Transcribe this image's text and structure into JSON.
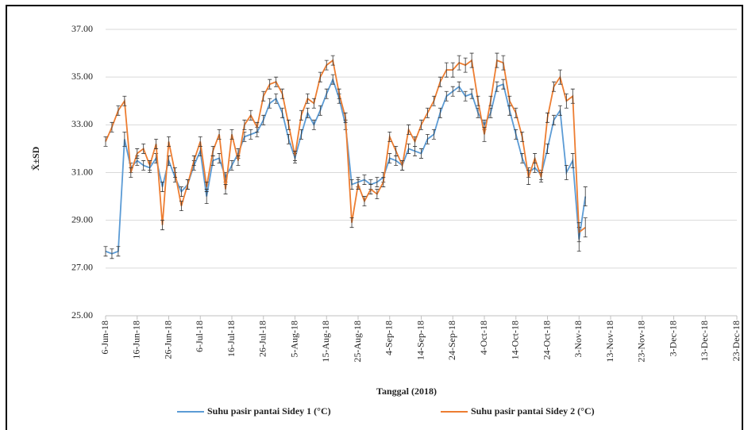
{
  "chart_data": {
    "type": "line",
    "y_label": "X̄±SD",
    "x_label": "Tanggal (2018)",
    "x": [
      "6-Jun-18",
      "8-Jun-18",
      "10-Jun-18",
      "12-Jun-18",
      "14-Jun-18",
      "16-Jun-18",
      "18-Jun-18",
      "20-Jun-18",
      "22-Jun-18",
      "24-Jun-18",
      "26-Jun-18",
      "28-Jun-18",
      "30-Jun-18",
      "2-Jul-18",
      "4-Jul-18",
      "6-Jul-18",
      "8-Jul-18",
      "10-Jul-18",
      "12-Jul-18",
      "14-Jul-18",
      "16-Jul-18",
      "18-Jul-18",
      "20-Jul-18",
      "22-Jul-18",
      "24-Jul-18",
      "26-Jul-18",
      "28-Jul-18",
      "30-Jul-18",
      "1-Aug-18",
      "3-Aug-18",
      "5-Aug-18",
      "7-Aug-18",
      "9-Aug-18",
      "11-Aug-18",
      "13-Aug-18",
      "15-Aug-18",
      "17-Aug-18",
      "19-Aug-18",
      "21-Aug-18",
      "23-Aug-18",
      "25-Aug-18",
      "27-Aug-18",
      "29-Aug-18",
      "31-Aug-18",
      "2-Sep-18",
      "4-Sep-18",
      "6-Sep-18",
      "8-Sep-18",
      "10-Sep-18",
      "12-Sep-18",
      "14-Sep-18",
      "16-Sep-18",
      "18-Sep-18",
      "20-Sep-18",
      "22-Sep-18",
      "24-Sep-18",
      "26-Sep-18",
      "28-Sep-18",
      "30-Sep-18",
      "2-Oct-18",
      "4-Oct-18",
      "6-Oct-18",
      "8-Oct-18",
      "10-Oct-18",
      "12-Oct-18",
      "14-Oct-18",
      "16-Oct-18",
      "18-Oct-18",
      "20-Oct-18",
      "22-Oct-18",
      "24-Oct-18",
      "26-Oct-18",
      "28-Oct-18",
      "30-Oct-18",
      "1-Nov-18",
      "3-Nov-18",
      "5-Nov-18"
    ],
    "series": [
      {
        "name": "Suhu pasir pantai Sidey 1 (°C)",
        "color": "#5b9bd5",
        "values": [
          27.7,
          27.6,
          27.7,
          32.4,
          31.2,
          31.5,
          31.3,
          31.2,
          31.6,
          30.4,
          31.5,
          30.8,
          30.2,
          30.5,
          31.3,
          31.9,
          30.0,
          31.5,
          31.6,
          30.8,
          31.3,
          31.8,
          32.5,
          32.6,
          32.7,
          33.2,
          33.9,
          34.1,
          33.5,
          32.4,
          31.6,
          32.6,
          33.5,
          33.0,
          33.6,
          34.3,
          34.9,
          34.1,
          33.0,
          30.5,
          30.6,
          30.7,
          30.5,
          30.6,
          30.8,
          31.6,
          31.5,
          31.3,
          32.0,
          31.9,
          31.8,
          32.4,
          32.6,
          33.5,
          34.2,
          34.4,
          34.6,
          34.2,
          34.3,
          33.5,
          33.0,
          33.5,
          34.6,
          34.7,
          33.6,
          32.6,
          31.6,
          31.0,
          31.2,
          30.9,
          32.0,
          33.2,
          33.6,
          31.0,
          31.5,
          28.2,
          30.0
        ],
        "errors": [
          0.2,
          0.2,
          0.2,
          0.3,
          0.2,
          0.2,
          0.2,
          0.2,
          0.2,
          0.2,
          0.2,
          0.2,
          0.2,
          0.2,
          0.2,
          0.2,
          0.3,
          0.2,
          0.2,
          0.2,
          0.2,
          0.2,
          0.2,
          0.2,
          0.2,
          0.2,
          0.2,
          0.2,
          0.2,
          0.2,
          0.2,
          0.2,
          0.2,
          0.2,
          0.2,
          0.2,
          0.2,
          0.2,
          0.2,
          0.2,
          0.2,
          0.2,
          0.2,
          0.2,
          0.2,
          0.2,
          0.2,
          0.2,
          0.2,
          0.2,
          0.2,
          0.2,
          0.2,
          0.2,
          0.2,
          0.2,
          0.2,
          0.2,
          0.2,
          0.2,
          0.2,
          0.2,
          0.2,
          0.2,
          0.2,
          0.2,
          0.2,
          0.2,
          0.2,
          0.2,
          0.2,
          0.2,
          0.2,
          0.3,
          0.3,
          0.5,
          0.4
        ]
      },
      {
        "name": "Suhu pasir pantai Sidey 2 (°C)",
        "color": "#ed7d31",
        "values": [
          32.3,
          32.9,
          33.6,
          34.0,
          31.0,
          31.8,
          32.0,
          31.3,
          32.2,
          28.8,
          32.3,
          31.0,
          29.6,
          30.5,
          31.5,
          32.3,
          30.4,
          31.9,
          32.6,
          30.3,
          32.6,
          31.5,
          33.0,
          33.4,
          32.9,
          34.2,
          34.7,
          34.8,
          34.3,
          33.0,
          31.7,
          33.4,
          34.1,
          33.9,
          35.0,
          35.5,
          35.7,
          34.3,
          33.3,
          28.9,
          30.5,
          29.8,
          30.3,
          30.1,
          30.6,
          32.5,
          31.9,
          31.3,
          32.8,
          32.3,
          33.0,
          33.5,
          34.0,
          34.8,
          35.3,
          35.3,
          35.6,
          35.5,
          35.7,
          34.0,
          32.6,
          34.0,
          35.7,
          35.6,
          34.0,
          33.5,
          32.5,
          30.8,
          31.6,
          30.8,
          33.3,
          34.6,
          35.0,
          34.0,
          34.2,
          28.5,
          28.7
        ],
        "errors": [
          0.2,
          0.2,
          0.2,
          0.2,
          0.2,
          0.2,
          0.2,
          0.2,
          0.2,
          0.2,
          0.2,
          0.2,
          0.2,
          0.2,
          0.2,
          0.2,
          0.2,
          0.2,
          0.2,
          0.2,
          0.2,
          0.2,
          0.2,
          0.2,
          0.2,
          0.2,
          0.2,
          0.2,
          0.2,
          0.2,
          0.2,
          0.2,
          0.2,
          0.2,
          0.2,
          0.2,
          0.2,
          0.2,
          0.2,
          0.2,
          0.2,
          0.2,
          0.2,
          0.2,
          0.2,
          0.2,
          0.2,
          0.2,
          0.2,
          0.2,
          0.2,
          0.2,
          0.2,
          0.2,
          0.3,
          0.3,
          0.3,
          0.3,
          0.3,
          0.2,
          0.3,
          0.2,
          0.3,
          0.3,
          0.2,
          0.2,
          0.2,
          0.3,
          0.2,
          0.2,
          0.2,
          0.2,
          0.3,
          0.3,
          0.3,
          0.4,
          0.4
        ]
      }
    ],
    "xlim": [
      "6-Jun-18",
      "23-Dec-18"
    ],
    "xticks": [
      "6-Jun-18",
      "16-Jun-18",
      "26-Jun-18",
      "6-Jul-18",
      "16-Jul-18",
      "26-Jul-18",
      "5-Aug-18",
      "15-Aug-18",
      "25-Aug-18",
      "4-Sep-18",
      "14-Sep-18",
      "24-Sep-18",
      "4-Oct-18",
      "14-Oct-18",
      "24-Oct-18",
      "3-Nov-18",
      "13-Nov-18",
      "23-Nov-18",
      "3-Dec-18",
      "13-Dec-18",
      "23-Dec-18"
    ],
    "ylim": [
      25,
      37
    ],
    "yticks": [
      {
        "value": 25,
        "label": "25.00"
      },
      {
        "value": 27,
        "label": "27.00"
      },
      {
        "value": 29,
        "label": "29.00"
      },
      {
        "value": 31,
        "label": "31.00"
      },
      {
        "value": 33,
        "label": "33.00"
      },
      {
        "value": 35,
        "label": "35.00"
      },
      {
        "value": 37,
        "label": "37.00"
      }
    ],
    "grid": true
  }
}
